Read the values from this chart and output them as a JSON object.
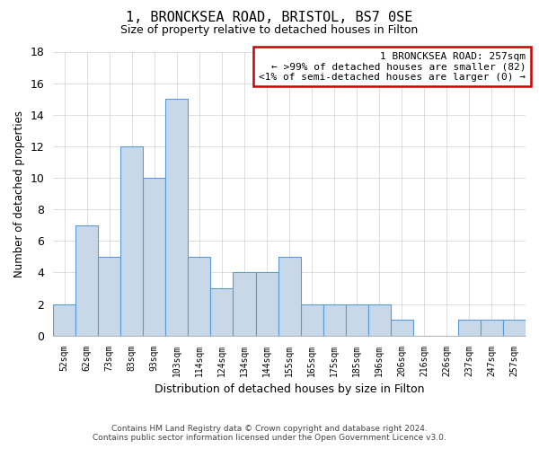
{
  "title": "1, BRONCKSEA ROAD, BRISTOL, BS7 0SE",
  "subtitle": "Size of property relative to detached houses in Filton",
  "xlabel": "Distribution of detached houses by size in Filton",
  "ylabel": "Number of detached properties",
  "categories": [
    "52sqm",
    "62sqm",
    "73sqm",
    "83sqm",
    "93sqm",
    "103sqm",
    "114sqm",
    "124sqm",
    "134sqm",
    "144sqm",
    "155sqm",
    "165sqm",
    "175sqm",
    "185sqm",
    "196sqm",
    "206sqm",
    "216sqm",
    "226sqm",
    "237sqm",
    "247sqm",
    "257sqm"
  ],
  "values": [
    2,
    7,
    5,
    12,
    10,
    15,
    5,
    3,
    4,
    4,
    5,
    2,
    2,
    2,
    2,
    1,
    0,
    0,
    1,
    1,
    1
  ],
  "bar_color": "#c8d8e8",
  "bar_edge_color": "#5b9bd5",
  "box_text_line1": "1 BRONCKSEA ROAD: 257sqm",
  "box_text_line2": "← >99% of detached houses are smaller (82)",
  "box_text_line3": "<1% of semi-detached houses are larger (0) →",
  "box_edge_color": "#cc0000",
  "ylim": [
    0,
    18
  ],
  "yticks": [
    0,
    2,
    4,
    6,
    8,
    10,
    12,
    14,
    16,
    18
  ],
  "footer_line1": "Contains HM Land Registry data © Crown copyright and database right 2024.",
  "footer_line2": "Contains public sector information licensed under the Open Government Licence v3.0.",
  "background_color": "#ffffff",
  "grid_color": "#d0d0d0"
}
